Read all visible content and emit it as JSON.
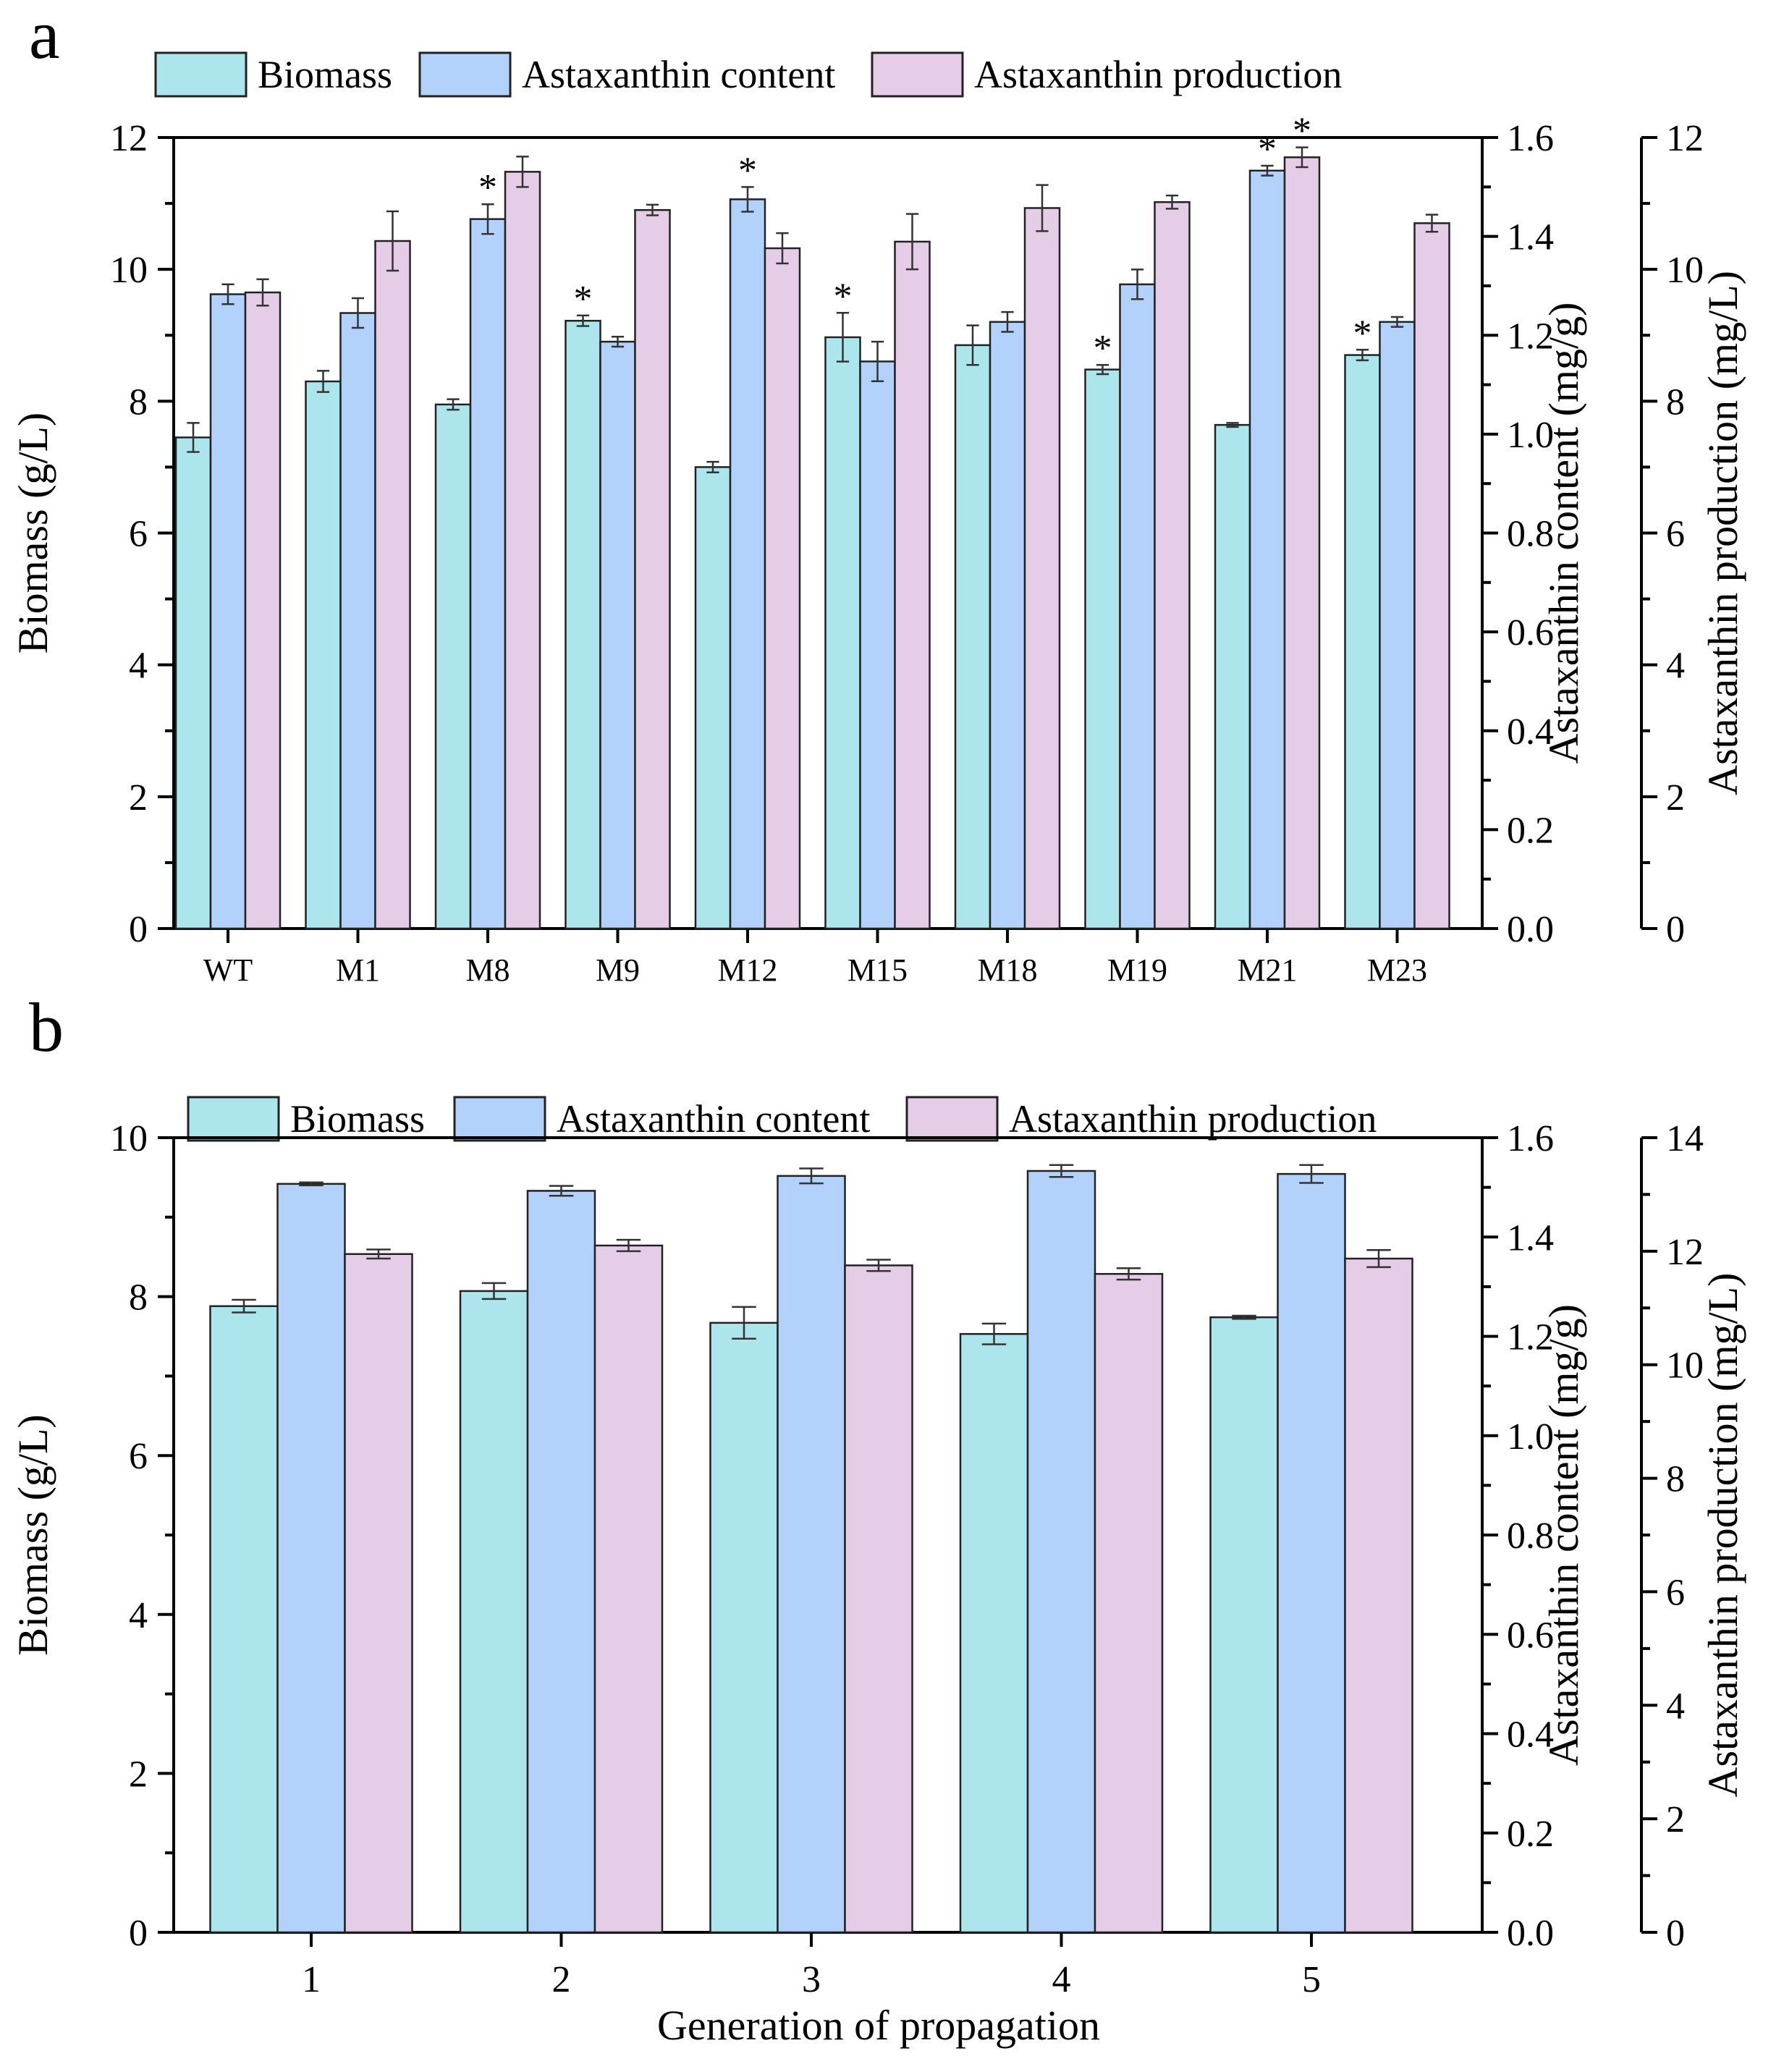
{
  "colors": {
    "biomass": "#ace6ec",
    "content": "#b3d2fb",
    "production": "#e5cde8"
  },
  "chart_data": [
    {
      "panel": "a",
      "type": "bar",
      "categories": [
        "WT",
        "M1",
        "M8",
        "M9",
        "M12",
        "M15",
        "M18",
        "M19",
        "M21",
        "M23"
      ],
      "legend": [
        "Biomass",
        "Astaxanthin content",
        "Astaxanthin production"
      ],
      "xlabel": "",
      "axes": [
        {
          "title": "Biomass (g/L)",
          "min": 0,
          "max": 12,
          "ticks": [
            "0",
            "2",
            "4",
            "6",
            "8",
            "10",
            "12"
          ]
        },
        {
          "title": "Astaxanthin content (mg/g)",
          "min": 0,
          "max": 1.6,
          "ticks": [
            "0.0",
            "0.2",
            "0.4",
            "0.6",
            "0.8",
            "1.0",
            "1.2",
            "1.4",
            "1.6"
          ]
        },
        {
          "title": "Astaxanthin production (mg/L)",
          "min": 0,
          "max": 12,
          "ticks": [
            "0",
            "2",
            "4",
            "6",
            "8",
            "10",
            "12"
          ]
        }
      ],
      "series": [
        {
          "name": "Biomass",
          "axis": 0,
          "values": [
            7.45,
            8.3,
            7.95,
            9.22,
            7.0,
            8.97,
            8.85,
            8.48,
            7.64,
            8.7
          ],
          "errors": [
            0.22,
            0.16,
            0.08,
            0.08,
            0.08,
            0.37,
            0.3,
            0.07,
            0.03,
            0.08
          ],
          "sig": [
            "",
            "",
            "",
            "*",
            "",
            "*",
            "",
            "*",
            "",
            "*"
          ]
        },
        {
          "name": "Astaxanthin content",
          "axis": 1,
          "values": [
            1.283,
            1.245,
            1.435,
            1.187,
            1.475,
            1.147,
            1.227,
            1.303,
            1.533,
            1.227
          ],
          "errors": [
            0.02,
            0.03,
            0.03,
            0.01,
            0.025,
            0.04,
            0.02,
            0.03,
            0.01,
            0.01
          ],
          "sig": [
            "",
            "",
            "*",
            "",
            "*",
            "",
            "",
            "",
            "*",
            ""
          ]
        },
        {
          "name": "Astaxanthin production",
          "axis": 2,
          "values": [
            9.65,
            10.43,
            11.48,
            10.9,
            10.32,
            10.42,
            10.93,
            11.02,
            11.7,
            10.7
          ],
          "errors": [
            0.2,
            0.45,
            0.23,
            0.08,
            0.23,
            0.42,
            0.35,
            0.1,
            0.15,
            0.13
          ],
          "sig": [
            "",
            "",
            "",
            "",
            "",
            "",
            "",
            "",
            "*",
            ""
          ]
        }
      ]
    },
    {
      "panel": "b",
      "type": "bar",
      "categories": [
        "1",
        "2",
        "3",
        "4",
        "5"
      ],
      "legend": [
        "Biomass",
        "Astaxanthin content",
        "Astaxanthin production"
      ],
      "xlabel": "Generation of propagation",
      "axes": [
        {
          "title": "Biomass (g/L)",
          "min": 0,
          "max": 10,
          "ticks": [
            "0",
            "2",
            "4",
            "6",
            "8",
            "10"
          ]
        },
        {
          "title": "Astaxanthin content (mg/g)",
          "min": 0,
          "max": 1.6,
          "ticks": [
            "0.0",
            "0.2",
            "0.4",
            "0.6",
            "0.8",
            "1.0",
            "1.2",
            "1.4",
            "1.6"
          ]
        },
        {
          "title": "Astaxanthin production (mg/L)",
          "min": 0,
          "max": 14,
          "ticks": [
            "0",
            "2",
            "4",
            "6",
            "8",
            "10",
            "12",
            "14"
          ]
        }
      ],
      "series": [
        {
          "name": "Biomass",
          "axis": 0,
          "values": [
            7.88,
            8.07,
            7.67,
            7.53,
            7.74
          ],
          "errors": [
            0.08,
            0.1,
            0.2,
            0.13,
            0.02
          ],
          "sig": [
            "",
            "",
            "",
            "",
            ""
          ]
        },
        {
          "name": "Astaxanthin content",
          "axis": 1,
          "values": [
            1.507,
            1.493,
            1.523,
            1.533,
            1.527
          ],
          "errors": [
            0.003,
            0.01,
            0.015,
            0.012,
            0.018
          ],
          "sig": [
            "",
            "",
            "",
            "",
            ""
          ]
        },
        {
          "name": "Astaxanthin production",
          "axis": 2,
          "values": [
            11.95,
            12.1,
            11.75,
            11.6,
            11.87
          ],
          "errors": [
            0.08,
            0.1,
            0.1,
            0.1,
            0.15
          ],
          "sig": [
            "",
            "",
            "",
            "",
            ""
          ]
        }
      ]
    }
  ]
}
